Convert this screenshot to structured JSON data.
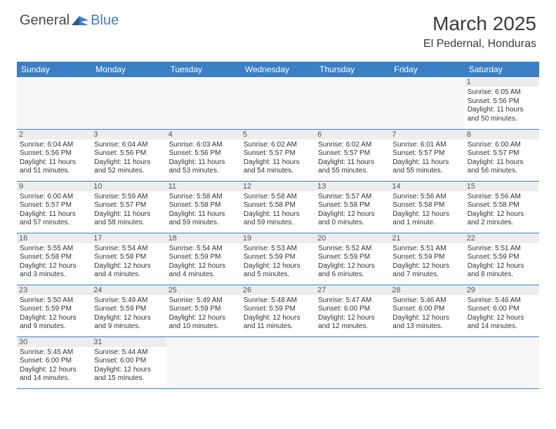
{
  "logo": {
    "text1": "General",
    "text2": "Blue"
  },
  "title": "March 2025",
  "location": "El Pedernal, Honduras",
  "colors": {
    "header_bg": "#3b7fc4",
    "header_text": "#ffffff",
    "daynum_bg": "#ededed",
    "cell_border": "#3b7fc4",
    "empty_bg": "#f7f7f7",
    "text": "#333333",
    "logo_gray": "#4a4a4a",
    "logo_blue": "#3b7fc4"
  },
  "fonts": {
    "family": "Arial",
    "title_size_pt": 21,
    "location_size_pt": 12,
    "day_header_size_pt": 9,
    "daynum_size_pt": 8,
    "body_size_pt": 7.5
  },
  "day_headers": [
    "Sunday",
    "Monday",
    "Tuesday",
    "Wednesday",
    "Thursday",
    "Friday",
    "Saturday"
  ],
  "weeks": [
    [
      null,
      null,
      null,
      null,
      null,
      null,
      {
        "n": "1",
        "sr": "6:05 AM",
        "ss": "5:56 PM",
        "dl": "11 hours and 50 minutes."
      }
    ],
    [
      {
        "n": "2",
        "sr": "6:04 AM",
        "ss": "5:56 PM",
        "dl": "11 hours and 51 minutes."
      },
      {
        "n": "3",
        "sr": "6:04 AM",
        "ss": "5:56 PM",
        "dl": "11 hours and 52 minutes."
      },
      {
        "n": "4",
        "sr": "6:03 AM",
        "ss": "5:56 PM",
        "dl": "11 hours and 53 minutes."
      },
      {
        "n": "5",
        "sr": "6:02 AM",
        "ss": "5:57 PM",
        "dl": "11 hours and 54 minutes."
      },
      {
        "n": "6",
        "sr": "6:02 AM",
        "ss": "5:57 PM",
        "dl": "11 hours and 55 minutes."
      },
      {
        "n": "7",
        "sr": "6:01 AM",
        "ss": "5:57 PM",
        "dl": "11 hours and 55 minutes."
      },
      {
        "n": "8",
        "sr": "6:00 AM",
        "ss": "5:57 PM",
        "dl": "11 hours and 56 minutes."
      }
    ],
    [
      {
        "n": "9",
        "sr": "6:00 AM",
        "ss": "5:57 PM",
        "dl": "11 hours and 57 minutes."
      },
      {
        "n": "10",
        "sr": "5:59 AM",
        "ss": "5:57 PM",
        "dl": "11 hours and 58 minutes."
      },
      {
        "n": "11",
        "sr": "5:58 AM",
        "ss": "5:58 PM",
        "dl": "11 hours and 59 minutes."
      },
      {
        "n": "12",
        "sr": "5:58 AM",
        "ss": "5:58 PM",
        "dl": "11 hours and 59 minutes."
      },
      {
        "n": "13",
        "sr": "5:57 AM",
        "ss": "5:58 PM",
        "dl": "12 hours and 0 minutes."
      },
      {
        "n": "14",
        "sr": "5:56 AM",
        "ss": "5:58 PM",
        "dl": "12 hours and 1 minute."
      },
      {
        "n": "15",
        "sr": "5:56 AM",
        "ss": "5:58 PM",
        "dl": "12 hours and 2 minutes."
      }
    ],
    [
      {
        "n": "16",
        "sr": "5:55 AM",
        "ss": "5:58 PM",
        "dl": "12 hours and 3 minutes."
      },
      {
        "n": "17",
        "sr": "5:54 AM",
        "ss": "5:58 PM",
        "dl": "12 hours and 4 minutes."
      },
      {
        "n": "18",
        "sr": "5:54 AM",
        "ss": "5:59 PM",
        "dl": "12 hours and 4 minutes."
      },
      {
        "n": "19",
        "sr": "5:53 AM",
        "ss": "5:59 PM",
        "dl": "12 hours and 5 minutes."
      },
      {
        "n": "20",
        "sr": "5:52 AM",
        "ss": "5:59 PM",
        "dl": "12 hours and 6 minutes."
      },
      {
        "n": "21",
        "sr": "5:51 AM",
        "ss": "5:59 PM",
        "dl": "12 hours and 7 minutes."
      },
      {
        "n": "22",
        "sr": "5:51 AM",
        "ss": "5:59 PM",
        "dl": "12 hours and 8 minutes."
      }
    ],
    [
      {
        "n": "23",
        "sr": "5:50 AM",
        "ss": "5:59 PM",
        "dl": "12 hours and 9 minutes."
      },
      {
        "n": "24",
        "sr": "5:49 AM",
        "ss": "5:59 PM",
        "dl": "12 hours and 9 minutes."
      },
      {
        "n": "25",
        "sr": "5:49 AM",
        "ss": "5:59 PM",
        "dl": "12 hours and 10 minutes."
      },
      {
        "n": "26",
        "sr": "5:48 AM",
        "ss": "5:59 PM",
        "dl": "12 hours and 11 minutes."
      },
      {
        "n": "27",
        "sr": "5:47 AM",
        "ss": "6:00 PM",
        "dl": "12 hours and 12 minutes."
      },
      {
        "n": "28",
        "sr": "5:46 AM",
        "ss": "6:00 PM",
        "dl": "12 hours and 13 minutes."
      },
      {
        "n": "29",
        "sr": "5:46 AM",
        "ss": "6:00 PM",
        "dl": "12 hours and 14 minutes."
      }
    ],
    [
      {
        "n": "30",
        "sr": "5:45 AM",
        "ss": "6:00 PM",
        "dl": "12 hours and 14 minutes."
      },
      {
        "n": "31",
        "sr": "5:44 AM",
        "ss": "6:00 PM",
        "dl": "12 hours and 15 minutes."
      },
      null,
      null,
      null,
      null,
      null
    ]
  ],
  "labels": {
    "sunrise": "Sunrise:",
    "sunset": "Sunset:",
    "daylight": "Daylight:"
  }
}
